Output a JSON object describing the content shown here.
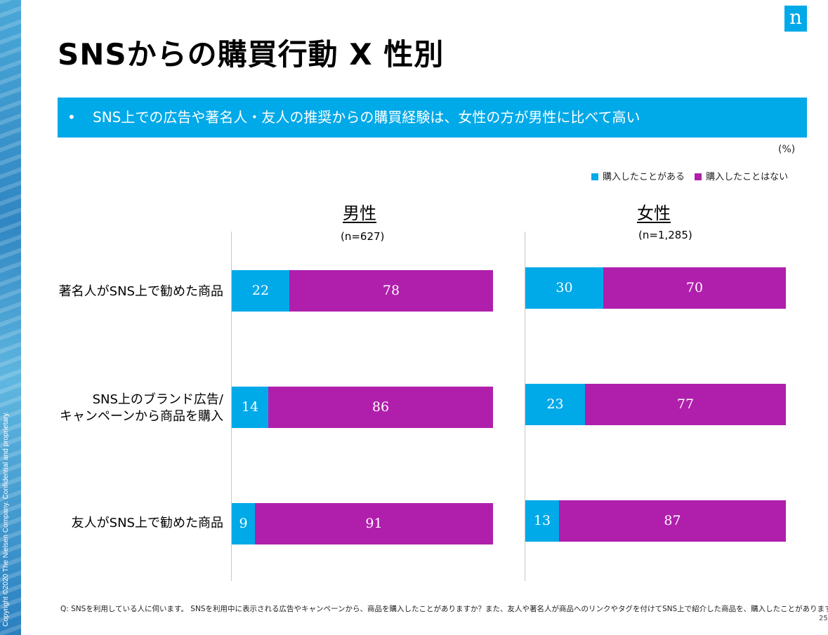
{
  "copyright": "Copyright ©2020  The Nielsen Company. Confidential and proprietary.",
  "logo_text": "n",
  "title": "SNSからの購買行動 X 性別",
  "banner": {
    "bullet": "•",
    "text": "SNS上での広告や著名人・友人の推奨からの購買経験は、女性の方が男性に比べて高い"
  },
  "unit": "(%)",
  "colors": {
    "accent": "#00a9e8",
    "purchased": "#00a9e8",
    "not_purchased": "#b01fac"
  },
  "chart_data": {
    "type": "bar",
    "orientation": "horizontal",
    "stacked": true,
    "unit": "%",
    "legend": [
      {
        "label": "購入したことがある",
        "color": "#00a9e8"
      },
      {
        "label": "購入したことはない",
        "color": "#b01fac"
      }
    ],
    "categories": [
      "著名人がSNS上で勧めた商品",
      "SNS上のブランド広告/\nキャンペーンから商品を購入",
      "友人がSNS上で勧めた商品"
    ],
    "panels": [
      {
        "title": "男性",
        "n": "(n=627)",
        "series": [
          {
            "name": "購入したことがある",
            "values": [
              22,
              14,
              9
            ]
          },
          {
            "name": "購入したことはない",
            "values": [
              78,
              86,
              91
            ]
          }
        ]
      },
      {
        "title": "女性",
        "n": "(n=1,285)",
        "series": [
          {
            "name": "購入したことがある",
            "values": [
              30,
              23,
              13
            ]
          },
          {
            "name": "購入したことはない",
            "values": [
              70,
              77,
              87
            ]
          }
        ]
      }
    ]
  },
  "question": "Q: SNSを利用している人に伺います。 SNSを利用中に表示される広告やキャンペーンから、商品を購入したことがありますか？また、友人や著名人が商品へのリンクやタグを付けてSNS上で紹介した商品を、購入したことがありますか？",
  "page_number": "25"
}
